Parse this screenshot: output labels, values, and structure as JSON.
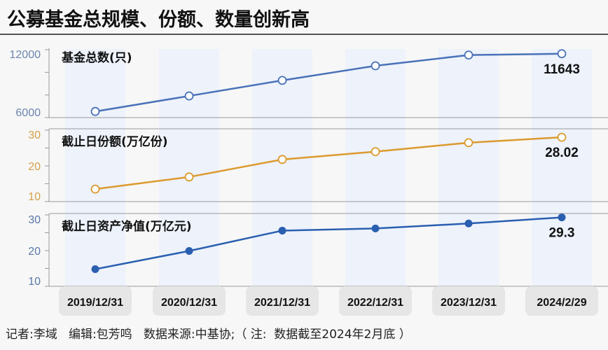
{
  "title": "公募基金总规模、份额、数量创新高",
  "footer": "记者:李域   编辑:包芳鸣   数据来源:中基协;（ 注:  数据截至2024年2月底 ）",
  "chart_data": [
    {
      "type": "line",
      "title": "基金总数(只)",
      "categories": [
        "2019/12/31",
        "2020/12/31",
        "2021/12/31",
        "2022/12/31",
        "2023/12/31",
        "2024/2/29"
      ],
      "values": [
        6544,
        7913,
        9288,
        10576,
        11528,
        11643
      ],
      "ylim": [
        6000,
        12000
      ],
      "tick_labels": [
        "6000",
        "12000"
      ],
      "tick_values": [
        6000,
        12000
      ],
      "minor_ticks": [
        8000,
        10000
      ],
      "end_label": "11643",
      "color": "#4a72b8",
      "marker": "hollow",
      "axis_color": "#6d86ad"
    },
    {
      "type": "line",
      "title": "截止日份额(万亿份)",
      "categories": [
        "2019/12/31",
        "2020/12/31",
        "2021/12/31",
        "2022/12/31",
        "2023/12/31",
        "2024/2/29"
      ],
      "values": [
        13.5,
        16.9,
        21.8,
        24.0,
        26.5,
        28.02
      ],
      "ylim": [
        10,
        30
      ],
      "tick_labels": [
        "10",
        "20",
        "30"
      ],
      "tick_values": [
        10,
        20,
        30
      ],
      "minor_ticks": [
        15,
        25
      ],
      "end_label": "28.02",
      "color": "#dc9a2e",
      "marker": "hollow",
      "axis_color": "#d4a04a"
    },
    {
      "type": "line",
      "title": "截止日资产净值(万亿元)",
      "categories": [
        "2019/12/31",
        "2020/12/31",
        "2021/12/31",
        "2022/12/31",
        "2023/12/31",
        "2024/2/29"
      ],
      "values": [
        14.8,
        19.9,
        25.6,
        26.2,
        27.6,
        29.3
      ],
      "ylim": [
        10,
        30
      ],
      "tick_labels": [
        "10",
        "20",
        "30"
      ],
      "tick_values": [
        10,
        20,
        30
      ],
      "minor_ticks": [
        15,
        25
      ],
      "end_label": "29.3",
      "color": "#2a5fb0",
      "marker": "filled",
      "axis_color": "#5a78a8"
    }
  ],
  "x_labels": [
    "2019/12/31",
    "2020/12/31",
    "2021/12/31",
    "2022/12/31",
    "2023/12/31",
    "2024/2/29"
  ]
}
